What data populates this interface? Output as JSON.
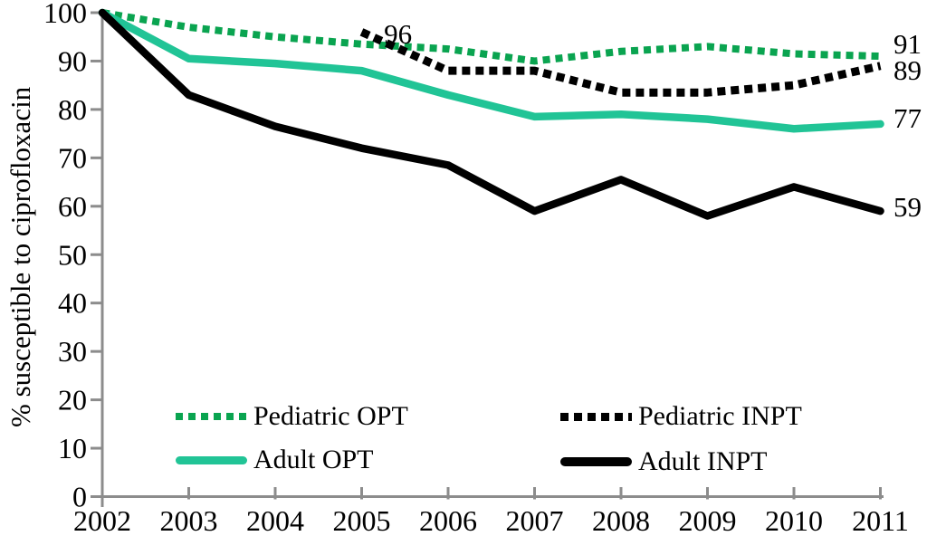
{
  "chart_data": {
    "type": "line",
    "title": "",
    "xlabel": "",
    "ylabel": "% susceptible to ciprofloxacin",
    "categories": [
      2002,
      2003,
      2004,
      2005,
      2006,
      2007,
      2008,
      2009,
      2010,
      2011
    ],
    "ylim": [
      0,
      100
    ],
    "yticks": [
      0,
      10,
      20,
      30,
      40,
      50,
      60,
      70,
      80,
      90,
      100
    ],
    "grid": false,
    "legend_position": "inside-bottom",
    "axis_color": "#8c8c8c",
    "series": [
      {
        "name": "Pediatric OPT",
        "style": "dotted",
        "color": "#0aa450",
        "values": [
          100,
          97,
          95,
          93.5,
          92.5,
          90,
          92,
          93,
          91.5,
          91
        ],
        "end_label": "91"
      },
      {
        "name": "Pediatric INPT",
        "style": "dotted",
        "color": "#000000",
        "values": [
          null,
          null,
          null,
          96,
          88,
          88,
          83.5,
          83.5,
          85,
          89
        ],
        "end_label": "89"
      },
      {
        "name": "Adult OPT",
        "style": "solid",
        "color": "#21c496",
        "values": [
          100,
          90.5,
          89.5,
          88,
          83,
          78.5,
          79,
          78,
          76,
          77
        ],
        "end_label": "77"
      },
      {
        "name": "Adult INPT",
        "style": "solid",
        "color": "#000000",
        "values": [
          100,
          83,
          76.5,
          72,
          68.5,
          59,
          65.5,
          58,
          64,
          59
        ],
        "end_label": "59"
      }
    ],
    "annotations": [
      {
        "text": "96",
        "x": 2005.42,
        "y": 95.5
      }
    ]
  }
}
